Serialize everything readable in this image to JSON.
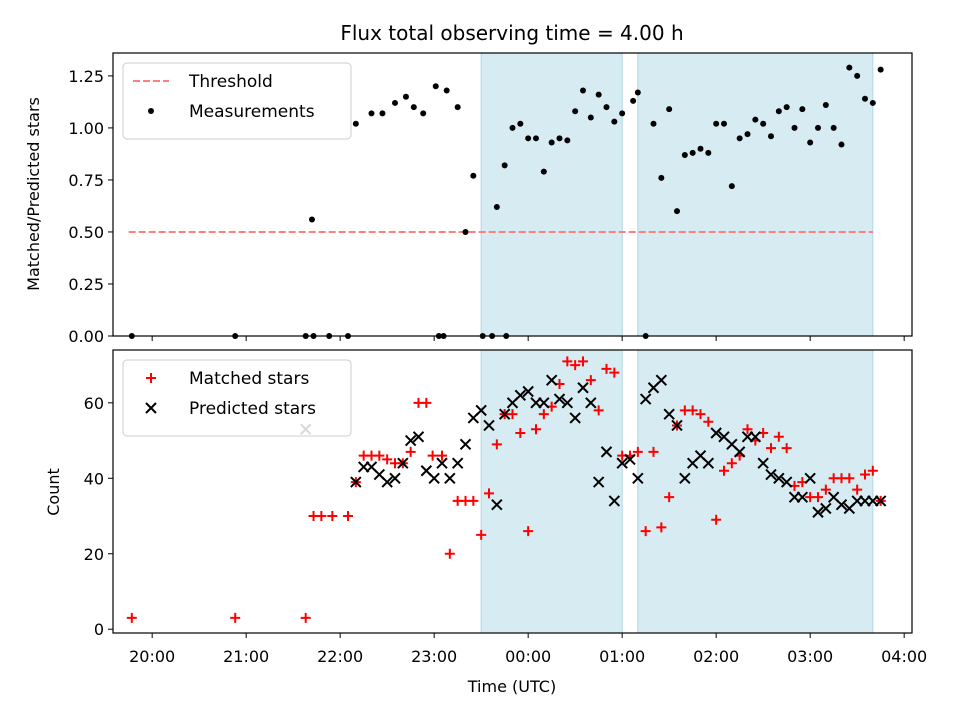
{
  "chart_data": [
    {
      "type": "scatter",
      "title": "Flux total observing time = 4.00 h",
      "xlabel": "",
      "ylabel": "Matched/Predicted stars",
      "ylim": [
        0,
        1.36
      ],
      "xlim": [
        "19:35",
        "04:05"
      ],
      "ytick_labels": [
        "0.00",
        "0.25",
        "0.50",
        "0.75",
        "1.00",
        "1.25"
      ],
      "ytick_values": [
        0,
        0.25,
        0.5,
        0.75,
        1.0,
        1.25
      ],
      "legend": {
        "location": "upper left",
        "entries": [
          "Threshold",
          "Measurements"
        ]
      },
      "shaded_intervals": [
        [
          "23:30",
          "01:00"
        ],
        [
          "01:10",
          "03:40"
        ]
      ],
      "threshold": {
        "name": "Threshold",
        "value": 0.5,
        "x_start": "19:45",
        "x_end": "03:40",
        "color": "#ff7f7f",
        "style": "dashed"
      },
      "series": [
        {
          "name": "Measurements",
          "color": "#000000",
          "marker": "dot",
          "x": [
            "19:47",
            "20:53",
            "21:38",
            "21:43",
            "21:53",
            "22:05",
            "22:10",
            "22:20",
            "22:27",
            "22:35",
            "22:42",
            "22:47",
            "22:53",
            "23:01",
            "23:08",
            "23:15",
            "23:20",
            "23:25",
            "23:31",
            "23:37",
            "23:40",
            "23:45",
            "23:50",
            "23:55",
            "00:00",
            "00:05",
            "00:10",
            "00:15",
            "00:20",
            "00:25",
            "00:30",
            "00:35",
            "00:40",
            "00:45",
            "00:50",
            "00:55",
            "01:00",
            "01:07",
            "01:10",
            "01:15",
            "01:20",
            "01:25",
            "01:30",
            "01:35",
            "01:40",
            "01:45",
            "01:50",
            "01:55",
            "02:00",
            "02:05",
            "02:10",
            "02:15",
            "02:20",
            "02:25",
            "02:30",
            "02:35",
            "02:40",
            "02:45",
            "02:50",
            "02:55",
            "03:00",
            "03:05",
            "03:10",
            "03:15",
            "03:20",
            "03:25",
            "03:30",
            "03:35",
            "03:40",
            "03:45",
            "23:46",
            "21:42",
            "23:03",
            "23:06"
          ],
          "y": [
            0.0,
            0.0,
            0.0,
            0.0,
            0.0,
            0.0,
            1.02,
            1.07,
            1.07,
            1.12,
            1.15,
            1.1,
            1.07,
            1.2,
            1.18,
            1.1,
            0.5,
            0.77,
            0.0,
            0.0,
            0.62,
            0.82,
            1.0,
            1.02,
            0.95,
            0.95,
            0.79,
            0.93,
            0.95,
            0.94,
            1.08,
            1.18,
            1.05,
            1.16,
            1.1,
            1.03,
            1.07,
            1.13,
            1.17,
            0.0,
            1.02,
            0.76,
            1.09,
            0.6,
            0.87,
            0.88,
            0.9,
            0.88,
            1.02,
            1.02,
            0.72,
            0.95,
            0.97,
            1.04,
            1.02,
            0.96,
            1.08,
            1.1,
            1.0,
            1.09,
            0.93,
            1.0,
            1.11,
            1.0,
            0.92,
            1.29,
            1.25,
            1.14,
            1.12,
            1.28,
            0.0,
            0.56,
            0.0,
            0.0
          ]
        }
      ]
    },
    {
      "type": "scatter",
      "title": "",
      "xlabel": "Time (UTC)",
      "ylabel": "Count",
      "ylim": [
        -1,
        74
      ],
      "xlim": [
        "19:35",
        "04:05"
      ],
      "xtick_labels": [
        "20:00",
        "21:00",
        "22:00",
        "23:00",
        "00:00",
        "01:00",
        "02:00",
        "03:00",
        "04:00"
      ],
      "ytick_labels": [
        "0",
        "20",
        "40",
        "60"
      ],
      "ytick_values": [
        0,
        20,
        40,
        60
      ],
      "legend": {
        "location": "upper left",
        "entries": [
          "Matched stars",
          "Predicted stars"
        ]
      },
      "shaded_intervals": [
        [
          "23:30",
          "01:00"
        ],
        [
          "01:10",
          "03:40"
        ]
      ],
      "series": [
        {
          "name": "Matched stars",
          "color": "#ff0000",
          "marker": "plus",
          "x": [
            "19:47",
            "20:53",
            "21:38",
            "21:43",
            "21:48",
            "21:55",
            "22:05",
            "22:10",
            "22:15",
            "22:20",
            "22:25",
            "22:30",
            "22:35",
            "22:40",
            "22:45",
            "22:50",
            "22:55",
            "22:59",
            "23:05",
            "23:10",
            "23:15",
            "23:20",
            "23:25",
            "23:30",
            "23:35",
            "23:40",
            "23:45",
            "23:50",
            "23:55",
            "00:00",
            "00:05",
            "00:10",
            "00:15",
            "00:20",
            "00:25",
            "00:30",
            "00:35",
            "00:40",
            "00:45",
            "00:50",
            "00:55",
            "01:00",
            "01:05",
            "01:10",
            "01:15",
            "01:20",
            "01:25",
            "01:30",
            "01:35",
            "01:40",
            "01:45",
            "01:50",
            "01:55",
            "02:00",
            "02:05",
            "02:10",
            "02:15",
            "02:20",
            "02:25",
            "02:30",
            "02:35",
            "02:40",
            "02:45",
            "02:50",
            "02:55",
            "03:00",
            "03:05",
            "03:10",
            "03:15",
            "03:20",
            "03:25",
            "03:30",
            "03:35",
            "03:40",
            "03:45"
          ],
          "y": [
            3,
            3,
            3,
            30,
            30,
            30,
            30,
            39,
            46,
            46,
            46,
            45,
            44,
            44,
            47,
            60,
            60,
            46,
            46,
            20,
            34,
            34,
            34,
            25,
            36,
            49,
            57,
            57,
            52,
            26,
            53,
            57,
            59,
            65,
            71,
            70,
            71,
            66,
            58,
            69,
            68,
            46,
            46,
            47,
            26,
            47,
            27,
            35,
            54,
            58,
            58,
            57,
            55,
            29,
            42,
            44,
            46,
            53,
            50,
            52,
            48,
            51,
            48,
            38,
            39,
            35,
            35,
            37,
            40,
            40,
            40,
            37,
            41,
            42,
            34
          ]
        },
        {
          "name": "Predicted stars",
          "color": "#000000",
          "marker": "x",
          "x": [
            "21:38",
            "22:10",
            "22:15",
            "22:20",
            "22:25",
            "22:30",
            "22:35",
            "22:40",
            "22:45",
            "22:50",
            "22:55",
            "23:00",
            "23:05",
            "23:10",
            "23:15",
            "23:20",
            "23:25",
            "23:30",
            "23:35",
            "23:40",
            "23:45",
            "23:50",
            "23:55",
            "00:00",
            "00:05",
            "00:10",
            "00:15",
            "00:20",
            "00:25",
            "00:30",
            "00:35",
            "00:40",
            "00:45",
            "00:50",
            "00:55",
            "01:00",
            "01:05",
            "01:10",
            "01:15",
            "01:20",
            "01:25",
            "01:30",
            "01:35",
            "01:40",
            "01:45",
            "01:50",
            "01:55",
            "02:00",
            "02:05",
            "02:10",
            "02:15",
            "02:20",
            "02:25",
            "02:30",
            "02:35",
            "02:40",
            "02:45",
            "02:50",
            "02:55",
            "03:00",
            "03:05",
            "03:10",
            "03:15",
            "03:20",
            "03:25",
            "03:30",
            "03:35",
            "03:40",
            "03:45"
          ],
          "y": [
            53,
            39,
            43,
            43,
            41,
            39,
            40,
            44,
            50,
            51,
            42,
            40,
            44,
            40,
            44,
            49,
            56,
            58,
            54,
            33,
            57,
            60,
            62,
            63,
            60,
            60,
            66,
            61,
            60,
            56,
            64,
            60,
            39,
            47,
            34,
            44,
            45,
            40,
            61,
            64,
            66,
            57,
            54,
            40,
            44,
            46,
            44,
            52,
            51,
            49,
            47,
            51,
            51,
            44,
            41,
            40,
            39,
            35,
            35,
            40,
            31,
            32,
            35,
            33,
            32,
            34,
            34,
            34,
            34
          ]
        }
      ]
    }
  ]
}
